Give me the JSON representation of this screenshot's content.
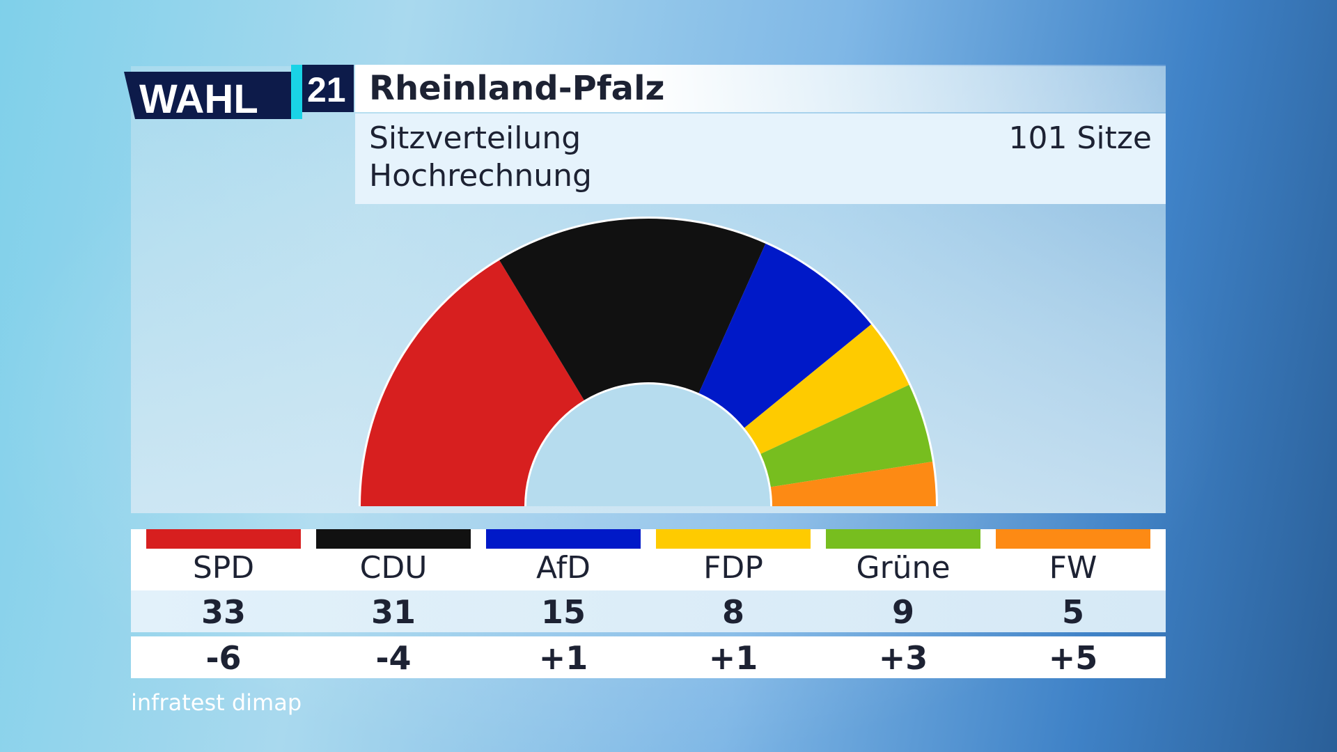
{
  "header": {
    "logo_text": "WAHL",
    "logo_year": "21",
    "title": "Rheinland-Pfalz",
    "subtitle_line1": "Sitzverteilung",
    "subtitle_line2": "Hochrechnung",
    "total_seats_label": "101 Sitze"
  },
  "colors": {
    "logo_navy": "#0d1b4a",
    "logo_cyan": "#19d3e6"
  },
  "chart_data": {
    "type": "pie",
    "subtype": "half-donut",
    "title": "Sitzverteilung",
    "total": 101,
    "categories": [
      "SPD",
      "CDU",
      "AfD",
      "FDP",
      "Grüne",
      "FW"
    ],
    "values": [
      33,
      31,
      15,
      8,
      9,
      5
    ],
    "changes": [
      "-6",
      "-4",
      "+1",
      "+1",
      "+3",
      "+5"
    ],
    "colors": [
      "#d71f1f",
      "#111111",
      "#0019c8",
      "#fecb00",
      "#77be1f",
      "#fd8a14"
    ]
  },
  "source": "infratest dimap"
}
